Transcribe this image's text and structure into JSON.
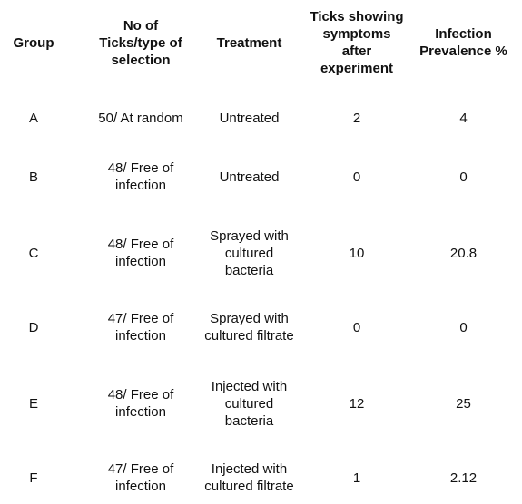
{
  "table": {
    "headers": [
      "Group",
      "No of\nTicks/type of\nselection",
      "Treatment",
      "Ticks showing\nsymptoms\nafter\nexperiment",
      "Infection\nPrevalence %"
    ],
    "rows": [
      [
        "A",
        "50/ At random",
        "Untreated",
        "2",
        "4"
      ],
      [
        "B",
        "48/ Free of\ninfection",
        "Untreated",
        "0",
        "0"
      ],
      [
        "C",
        "48/ Free of\ninfection",
        "Sprayed with\ncultured\nbacteria",
        "10",
        "20.8"
      ],
      [
        "D",
        "47/ Free of\ninfection",
        "Sprayed with\ncultured filtrate",
        "0",
        "0"
      ],
      [
        "E",
        "48/ Free of\ninfection",
        "Injected with\ncultured\nbacteria",
        "12",
        "25"
      ],
      [
        "F",
        "47/ Free of\ninfection",
        "Injected with\ncultured filtrate",
        "1",
        "2.12"
      ]
    ]
  }
}
